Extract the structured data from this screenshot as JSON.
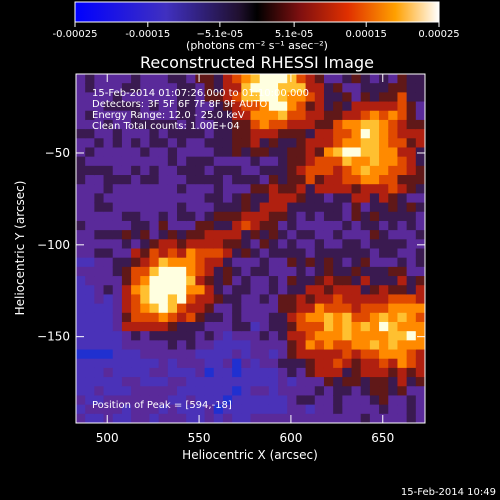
{
  "colorbar": {
    "ticks": [
      -0.00025,
      -0.00015,
      -5.1e-05,
      5.1e-05,
      0.00015,
      0.00025
    ],
    "tick_labels": [
      "-0.00025",
      "-0.00015",
      "−5.1e-05",
      "5.1e-05",
      "0.00015",
      "0.00025"
    ],
    "units_label": "(photons cm⁻² s⁻¹ asec⁻²)",
    "range": [
      -0.00025,
      0.00025
    ]
  },
  "chart_data": {
    "type": "heatmap",
    "title": "Reconstructed RHESSI Image",
    "xlabel": "Heliocentric X (arcsec)",
    "ylabel": "Heliocentric Y (arcsec)",
    "xlim": [
      483,
      673
    ],
    "ylim": [
      -197,
      -7
    ],
    "x_ticks": [
      500,
      550,
      600,
      650
    ],
    "y_ticks": [
      -50,
      -100,
      -150
    ],
    "x_tick_labels": [
      "500",
      "550",
      "600",
      "650"
    ],
    "y_tick_labels": [
      "−50",
      "−100",
      "−150"
    ],
    "annotations": [
      "15-Feb-2014 01:07:26.000 to 01:10:00.000",
      "Detectors: 3F 5F 6F 7F 8F 9F AUTO",
      "Energy Range: 12.0 - 25.0 keV",
      "Clean     Total counts: 1.00E+04"
    ],
    "peak_label": "Position of Peak = [594,-18]",
    "peak": [
      594,
      -18
    ],
    "sources": [
      {
        "x": 590,
        "y": -15,
        "amp": 1.0
      },
      {
        "x": 530,
        "y": -125,
        "amp": 0.95
      },
      {
        "x": 645,
        "y": -52,
        "amp": 0.72
      },
      {
        "x": 660,
        "y": -148,
        "amp": 0.8
      },
      {
        "x": 620,
        "y": -145,
        "amp": 0.7
      }
    ]
  },
  "footer": {
    "date": "15-Feb-2014 10:49"
  }
}
